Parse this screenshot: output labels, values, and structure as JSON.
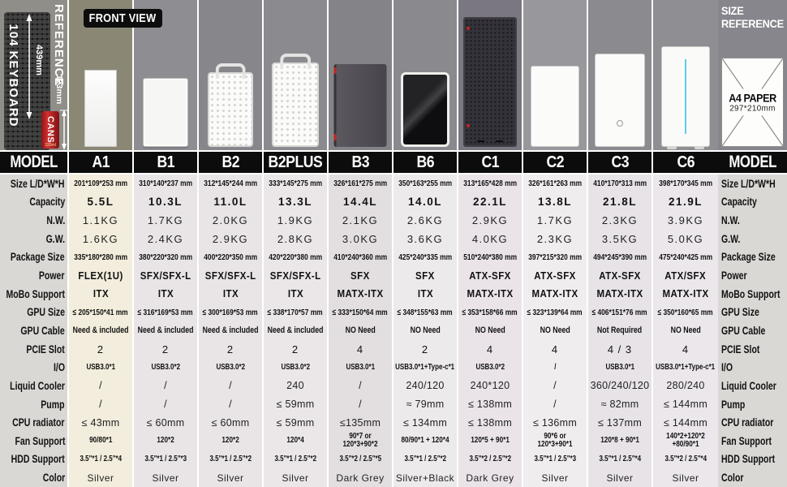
{
  "front_view_label": "FRONT VIEW",
  "size_reference_label": "SIZE REFERENCE",
  "model_header": "MODEL",
  "reference": {
    "keyboard_label": "104 KEYBOARD",
    "reference_label": "REFERENCE",
    "keyboard_height": "439mm",
    "can_height": "123mm",
    "can_label": "CANS",
    "can_volume": "330ml"
  },
  "a4_paper": {
    "title": "A4 PAPER",
    "size": "297*210mm"
  },
  "spec_labels": [
    "Size L/D*W*H",
    "Capacity",
    "N.W.",
    "G.W.",
    "Package Size",
    "Power",
    "MoBo Support",
    "GPU Size",
    "GPU Cable",
    "PCIE Slot",
    "I/O",
    "Liquid Cooler",
    "Pump",
    "CPU radiator",
    "Fan Support",
    "HDD Support",
    "Color"
  ],
  "palette": {
    "header_bg": "#0c0c0c",
    "header_text": "#ffffff",
    "label_col_bg": "#d9d8d5",
    "separator": "#ffffff",
    "accent_red": "#c0261f",
    "led_blue": "#62c9ec"
  },
  "models": [
    {
      "name": "A1",
      "bg": "#8a8875",
      "cell_bg": "#f2eddc",
      "case": {
        "style": "plain-white",
        "w": 40,
        "h": 95
      },
      "specs": [
        "201*109*253 mm",
        "5.5L",
        "1.1KG",
        "1.6KG",
        "335*180*280 mm",
        "FLEX(1U)",
        "ITX",
        "≤ 205*150*41 mm",
        "Need & included",
        "2",
        "USB3.0*1",
        "/",
        "/",
        "≤ 43mm",
        "90/80*1",
        "3.5\"*1 / 2.5\"*4",
        "Silver"
      ]
    },
    {
      "name": "B1",
      "bg": "#8e8e92",
      "cell_bg": "#e9e5e7",
      "case": {
        "style": "panel-white",
        "w": 56,
        "h": 85
      },
      "specs": [
        "310*140*237 mm",
        "10.3L",
        "1.7KG",
        "2.4KG",
        "380*220*320 mm",
        "SFX/SFX-L",
        "ITX",
        "≤ 316*169*53 mm",
        "Need & included",
        "2",
        "USB3.0*2",
        "/",
        "/",
        "≤ 60mm",
        "120*2",
        "3.5\"*1 / 2.5\"*3",
        "Silver"
      ]
    },
    {
      "name": "B2",
      "bg": "#87878b",
      "cell_bg": "#e9e5e7",
      "case": {
        "style": "mesh-handle",
        "w": 56,
        "h": 92
      },
      "specs": [
        "312*145*244 mm",
        "11.0L",
        "2.0KG",
        "2.9KG",
        "400*220*350 mm",
        "SFX/SFX-L",
        "ITX",
        "≤ 300*169*53 mm",
        "Need & included",
        "2",
        "USB3.0*2",
        "/",
        "/",
        "≤ 60mm",
        "120*2",
        "3.5\"*1 / 2.5\"*2",
        "Silver"
      ]
    },
    {
      "name": "B2PLUS",
      "bg": "#8b8b8f",
      "cell_bg": "#ebe7e9",
      "case": {
        "style": "mesh-handle",
        "w": 58,
        "h": 104
      },
      "specs": [
        "333*145*275 mm",
        "13.3L",
        "1.9KG",
        "2.8KG",
        "420*220*380 mm",
        "SFX/SFX-L",
        "ITX",
        "≤ 338*170*57 mm",
        "Need & included",
        "2",
        "USB3.0*2",
        "240",
        "≤ 59mm",
        "≤ 59mm",
        "120*4",
        "3.5\"*1 / 2.5\"*2",
        "Silver"
      ]
    },
    {
      "name": "B3",
      "bg": "#848488",
      "cell_bg": "#e3dfe1",
      "case": {
        "style": "dark-red",
        "w": 65,
        "h": 102
      },
      "specs": [
        "326*161*275 mm",
        "14.4L",
        "2.1KG",
        "3.0KG",
        "410*240*360 mm",
        "SFX",
        "MATX-ITX",
        "≤ 333*150*64 mm",
        "NO Need",
        "4",
        "USB3.0*1",
        "/",
        "/",
        "≤135mm",
        "90*7 or 120*3+90*2",
        "3.5\"*2 / 2.5\"*5",
        "Dark Grey"
      ]
    },
    {
      "name": "B6",
      "bg": "#8a8a8e",
      "cell_bg": "#edeaec",
      "case": {
        "style": "black-gloss",
        "w": 60,
        "h": 92
      },
      "specs": [
        "350*163*255 mm",
        "14.0L",
        "2.6KG",
        "3.6KG",
        "425*240*335 mm",
        "SFX",
        "ITX",
        "≤ 348*155*63 mm",
        "NO Need",
        "2",
        "USB3.0*1+Type-c*1",
        "240/120",
        "≈ 79mm",
        "≤ 134mm",
        "80/90*1 + 120*4",
        "3.5\"*1 / 2.5\"*2",
        "Silver+Black"
      ]
    },
    {
      "name": "C1",
      "bg": "#7b7780",
      "cell_bg": "#eae4e9",
      "case": {
        "style": "dark-tower",
        "w": 66,
        "h": 160
      },
      "specs": [
        "313*165*428 mm",
        "22.1L",
        "2.9KG",
        "4.0KG",
        "510*240*380 mm",
        "ATX-SFX",
        "MATX-ITX",
        "≤ 353*158*66 mm",
        "NO Need",
        "4",
        "USB3.0*2",
        "240*120",
        "≤ 138mm",
        "≤ 138mm",
        "120*5 + 90*1",
        "3.5\"*2 / 2.5\"*2",
        "Dark Grey"
      ]
    },
    {
      "name": "C2",
      "bg": "#98979b",
      "cell_bg": "#f0edef",
      "case": {
        "style": "plain-dots",
        "w": 60,
        "h": 100
      },
      "specs": [
        "326*161*263 mm",
        "13.8L",
        "1.7KG",
        "2.3KG",
        "397*215*320 mm",
        "ATX-SFX",
        "MATX-ITX",
        "≤ 323*139*64 mm",
        "NO Need",
        "4",
        "/",
        "/",
        "/",
        "≤ 136mm",
        "90*6 or 120*3+90*1",
        "3.5\"*1 / 2.5\"*3",
        "Silver"
      ]
    },
    {
      "name": "C3",
      "bg": "#8b8a8f",
      "cell_bg": "#e7e3e7",
      "case": {
        "style": "plain-btn",
        "w": 62,
        "h": 115
      },
      "specs": [
        "410*170*313 mm",
        "21.8L",
        "2.3KG",
        "3.5KG",
        "494*245*390 mm",
        "ATX-SFX",
        "MATX-ITX",
        "≤ 406*151*76 mm",
        "Not Required",
        "4 / 3",
        "USB3.0*1",
        "360/240/120",
        "≈ 82mm",
        "≤ 137mm",
        "120*8 + 90*1",
        "3.5\"*1 / 2.5\"*4",
        "Silver"
      ]
    },
    {
      "name": "C6",
      "bg": "#8f8e93",
      "cell_bg": "#ebe7eb",
      "case": {
        "style": "led-white",
        "w": 60,
        "h": 124
      },
      "specs": [
        "398*170*345 mm",
        "21.9L",
        "3.9KG",
        "5.0KG",
        "475*240*425 mm",
        "ATX/SFX",
        "MATX-ITX",
        "≤ 350*160*65 mm",
        "NO Need",
        "4",
        "USB3.0*1+Type-c*1",
        "280/240",
        "≤ 144mm",
        "≤ 144mm",
        "140*2+120*2 +80/90*1",
        "3.5\"*2 / 2.5\"*4",
        "Silver"
      ]
    }
  ]
}
